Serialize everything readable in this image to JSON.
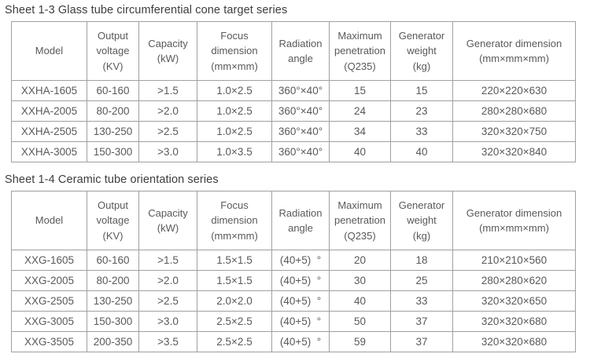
{
  "page": {
    "background": "#ffffff",
    "text_color": "#595959",
    "border_color": "#a0a0a0",
    "title_color": "#3d3d3d"
  },
  "tables": [
    {
      "title": "Sheet 1-3 Glass tube circumferential cone target series",
      "columns": [
        "Model",
        "Output\nvoltage\n(KV)",
        "Capacity\n(kW)",
        "Focus\ndimension\n(mm×mm)",
        "Radiation\nangle",
        "Maximum\npenetration\n(Q235)",
        "Generator\nweight\n(kg)",
        "Generator dimension\n(mm×mm×mm)"
      ],
      "rows": [
        [
          "XXHA-1605",
          "60-160",
          ">1.5",
          "1.0×2.5",
          "360°×40°",
          "15",
          "15",
          "220×220×630"
        ],
        [
          "XXHA-2005",
          "80-200",
          ">2.0",
          "1.0×2.5",
          "360°×40°",
          "24",
          "23",
          "280×280×680"
        ],
        [
          "XXHA-2505",
          "130-250",
          ">2.5",
          "1.0×2.5",
          "360°×40°",
          "34",
          "33",
          "320×320×750"
        ],
        [
          "XXHA-3005",
          "150-300",
          ">3.0",
          "1.0×3.5",
          "360°×40°",
          "40",
          "40",
          "320×320×840"
        ]
      ]
    },
    {
      "title": "Sheet 1-4 Ceramic tube orientation series",
      "columns": [
        "Model",
        "Output\nvoltage\n(KV)",
        "Capacity\n(kW)",
        "Focus\ndimension\n(mm×mm)",
        "Radiation\nangle",
        "Maximum\npenetration\n(Q235)",
        "Generator\nweight\n(kg)",
        "Generator dimension\n(mm×mm×mm)"
      ],
      "rows": [
        [
          "XXG-1605",
          "60-160",
          ">1.5",
          "1.5×1.5",
          "(40+5)  °",
          "20",
          "18",
          "210×210×560"
        ],
        [
          "XXG-2005",
          "80-200",
          ">2.0",
          "1.5×1.5",
          "(40+5)  °",
          "30",
          "25",
          "280×280×620"
        ],
        [
          "XXG-2505",
          "130-250",
          ">2.5",
          "2.0×2.0",
          "(40+5)  °",
          "40",
          "33",
          "320×320×650"
        ],
        [
          "XXG-3005",
          "150-300",
          ">3.0",
          "2.5×2.5",
          "(40+5)  °",
          "50",
          "37",
          "320×320×680"
        ],
        [
          "XXG-3505",
          "200-350",
          ">3.5",
          "2.5×2.5",
          "(40+5)  °",
          "59",
          "37",
          "320×320×680"
        ]
      ]
    }
  ]
}
